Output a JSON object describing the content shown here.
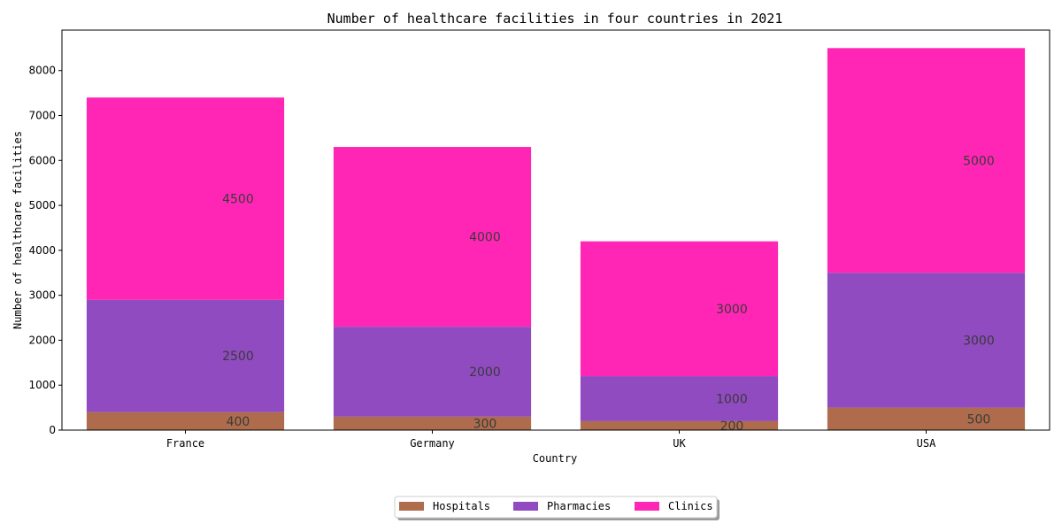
{
  "chart_data": {
    "type": "bar",
    "stacked": true,
    "title": "Number of healthcare facilities in four countries in 2021",
    "xlabel": "Country",
    "ylabel": "Number of healthcare facilities",
    "categories": [
      "France",
      "Germany",
      "UK",
      "USA"
    ],
    "series": [
      {
        "name": "Hospitals",
        "values": [
          400,
          300,
          200,
          500
        ],
        "color": "#a0522d"
      },
      {
        "name": "Pharmacies",
        "values": [
          2500,
          2000,
          1000,
          3000
        ],
        "color": "#7b2cb4"
      },
      {
        "name": "Clinics",
        "values": [
          4500,
          4000,
          3000,
          5000
        ],
        "color": "#ff00a8"
      }
    ],
    "ylim": [
      0,
      8900
    ],
    "yticks": [
      0,
      1000,
      2000,
      3000,
      4000,
      5000,
      6000,
      7000,
      8000
    ],
    "grid": false,
    "legend_position": "bottom-center"
  }
}
